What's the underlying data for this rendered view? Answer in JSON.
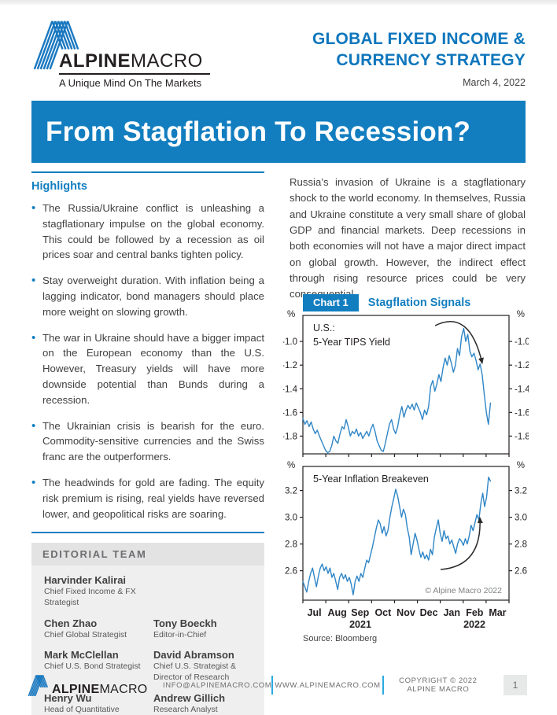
{
  "header": {
    "brand_bold": "ALPINE",
    "brand_light": "MACRO",
    "tagline": "A Unique Mind On The Markets",
    "publication_line1": "GLOBAL FIXED INCOME &",
    "publication_line2": "CURRENCY STRATEGY",
    "date": "March 4, 2022"
  },
  "banner": {
    "title": "From Stagflation To Recession?"
  },
  "highlights": {
    "heading": "Highlights",
    "bullets": [
      "The Russia/Ukraine conflict is unleashing a stagflationary impulse on the global economy. This could be followed by a recession as oil prices soar and central banks tighten policy.",
      "Stay overweight duration. With inflation being a lagging indicator, bond managers should place more weight on slowing growth.",
      "The war in Ukraine should have a bigger impact on the European economy than the U.S. However, Treasury yields will have more downside potential than Bunds during a recession.",
      "The Ukrainian crisis is bearish for the euro. Commodity-sensitive currencies and the Swiss franc are the outperformers.",
      "The headwinds for gold are fading. The equity risk premium is rising, real yields have reversed lower, and geopolitical risks are soaring."
    ]
  },
  "intro_paragraph": "Russia’s invasion of Ukraine is a stagflationary shock to the world economy. In themselves, Russia and Ukraine constitute a very small share of global GDP and financial markets. Deep recessions in both economies will not have a major direct impact on global growth. However, the indirect effect through rising resource prices could be very consequential.",
  "chart": {
    "label": "Chart 1",
    "title": "Stagflation Signals",
    "source": "Source: Bloomberg",
    "copyright": "© Alpine Macro 2022",
    "year_left": "2021",
    "year_right": "2022"
  },
  "chart_data": [
    {
      "type": "line",
      "series_name": "us-5-year-tips-yield",
      "title_line1": "U.S.:",
      "title_line2": "5-Year TIPS Yield",
      "unit": "%",
      "line_color": "#2f86c6",
      "ylim": [
        -1.95,
        -0.78
      ],
      "ytick_labels": [
        "-1.0",
        "-1.2",
        "-1.4",
        "-1.6",
        "-1.8"
      ],
      "x_range": "Jul 2021 - Mar 2022",
      "annotation": "peak-then-decline-arrow",
      "values": [
        -1.65,
        -1.7,
        -1.67,
        -1.72,
        -1.68,
        -1.74,
        -1.78,
        -1.75,
        -1.8,
        -1.84,
        -1.88,
        -1.92,
        -1.94,
        -1.93,
        -1.88,
        -1.8,
        -1.84,
        -1.86,
        -1.78,
        -1.72,
        -1.74,
        -1.66,
        -1.72,
        -1.8,
        -1.76,
        -1.78,
        -1.74,
        -1.8,
        -1.77,
        -1.82,
        -1.79,
        -1.76,
        -1.8,
        -1.74,
        -1.7,
        -1.76,
        -1.84,
        -1.88,
        -1.92,
        -1.93,
        -1.86,
        -1.78,
        -1.7,
        -1.66,
        -1.74,
        -1.78,
        -1.72,
        -1.62,
        -1.55,
        -1.64,
        -1.58,
        -1.54,
        -1.57,
        -1.53,
        -1.58,
        -1.52,
        -1.56,
        -1.6,
        -1.66,
        -1.58,
        -1.62,
        -1.55,
        -1.38,
        -1.33,
        -1.42,
        -1.36,
        -1.28,
        -1.34,
        -1.22,
        -1.14,
        -1.2,
        -1.12,
        -1.18,
        -1.26,
        -1.2,
        -1.06,
        -1.12,
        -0.96,
        -0.89,
        -1.0,
        -0.94,
        -1.08,
        -1.13,
        -1.1,
        -1.16,
        -1.24,
        -1.19,
        -1.28,
        -1.45,
        -1.6,
        -1.7,
        -1.52
      ]
    },
    {
      "type": "line",
      "series_name": "5-year-inflation-breakeven",
      "title_line1": "5-Year Inflation Breakeven",
      "title_line2": "",
      "unit": "%",
      "line_color": "#2f86c6",
      "ylim": [
        2.38,
        3.38
      ],
      "ytick_labels": [
        "3.2",
        "3.0",
        "2.8",
        "2.6"
      ],
      "x_range": "Jul 2021 - Mar 2022",
      "annotation": "rising-arrow",
      "values": [
        2.52,
        2.48,
        2.44,
        2.52,
        2.58,
        2.62,
        2.55,
        2.48,
        2.56,
        2.62,
        2.65,
        2.6,
        2.63,
        2.58,
        2.62,
        2.55,
        2.58,
        2.52,
        2.46,
        2.55,
        2.58,
        2.54,
        2.57,
        2.52,
        2.55,
        2.5,
        2.42,
        2.52,
        2.56,
        2.52,
        2.58,
        2.55,
        2.62,
        2.68,
        2.66,
        2.72,
        2.78,
        2.85,
        2.92,
        2.98,
        2.95,
        2.88,
        2.93,
        2.86,
        2.9,
        3.0,
        3.08,
        3.14,
        3.21,
        3.16,
        3.08,
        3.0,
        3.06,
        3.02,
        2.92,
        2.85,
        2.72,
        2.8,
        2.88,
        2.83,
        2.76,
        2.7,
        2.74,
        2.69,
        2.72,
        2.68,
        2.76,
        2.72,
        2.85,
        2.92,
        2.98,
        2.88,
        2.82,
        2.9,
        2.84,
        2.86,
        2.8,
        2.83,
        2.78,
        2.73,
        2.8,
        2.84,
        2.82,
        2.79,
        2.84,
        2.8,
        2.86,
        2.94,
        2.9,
        2.96,
        3.02,
        2.98,
        3.1,
        3.18,
        3.08,
        3.15,
        3.3,
        3.27
      ],
      "categories": [
        "Jul",
        "Aug",
        "Sep",
        "Oct",
        "Nov",
        "Dec",
        "Jan",
        "Feb",
        "Mar"
      ]
    }
  ],
  "editorial": {
    "heading": "EDITORIAL TEAM",
    "members": [
      {
        "name": "Harvinder Kalirai",
        "role": "Chief Fixed Income & FX Strategist"
      },
      {
        "name": "Chen Zhao",
        "role": "Chief Global Strategist"
      },
      {
        "name": "Tony Boeckh",
        "role": "Editor-in-Chief"
      },
      {
        "name": "Mark McClellan",
        "role": "Chief U.S. Bond Strategist"
      },
      {
        "name": "David Abramson",
        "role": "Chief U.S. Strategist & Director of Research"
      },
      {
        "name": "Henry Wu",
        "role": "Head of Quantitative Research"
      },
      {
        "name": "Andrew Gillich",
        "role": "Research Analyst"
      }
    ]
  },
  "footer": {
    "email": "INFO@ALPINEMACRO.COM",
    "website": "WWW.ALPINEMACRO.COM",
    "copyright": "COPYRIGHT © 2022 ALPINE MACRO",
    "page": "1"
  }
}
